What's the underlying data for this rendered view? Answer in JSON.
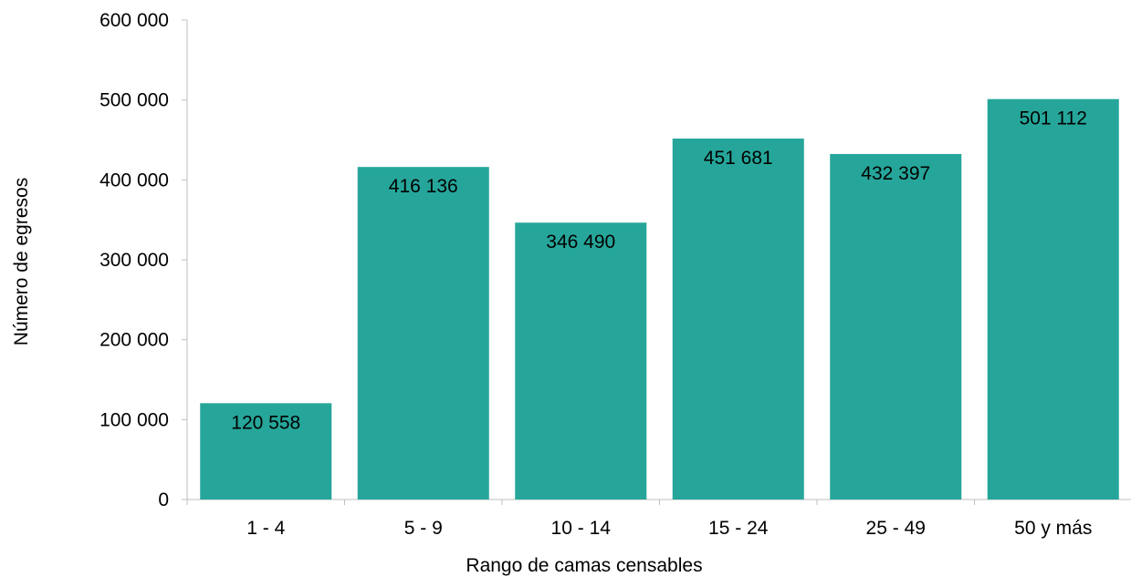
{
  "chart_data": {
    "type": "bar",
    "categories": [
      "1 - 4",
      "5  - 9",
      "10 - 14",
      "15 - 24",
      "25 - 49",
      "50 y más"
    ],
    "values": [
      120558,
      416136,
      346490,
      451681,
      432397,
      501112
    ],
    "value_labels": [
      "120 558",
      "416 136",
      "346 490",
      "451 681",
      "432 397",
      "501 112"
    ],
    "title": "",
    "xlabel": "Rango de camas censables",
    "ylabel": "Número de egresos",
    "ylim": [
      0,
      600000
    ],
    "yticks": [
      0,
      100000,
      200000,
      300000,
      400000,
      500000,
      600000
    ],
    "ytick_labels": [
      "0",
      "100 000",
      "200 000",
      "300 000",
      "400 000",
      "500 000",
      "600 000"
    ],
    "grid": false,
    "legend": "none",
    "bar_color": "#26a69a"
  }
}
